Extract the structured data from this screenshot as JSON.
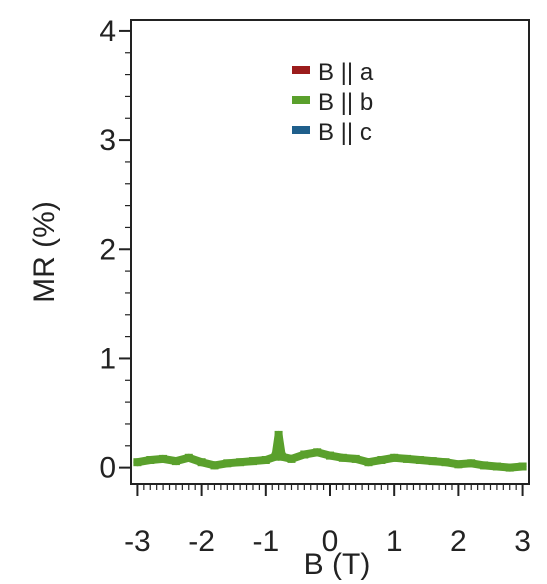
{
  "chart_data": {
    "type": "line",
    "xlabel": "B (T)",
    "ylabel": "MR (%)",
    "xlim": [
      -3.1,
      3.1
    ],
    "ylim": [
      -0.15,
      4.1
    ],
    "x_ticks": [
      -3,
      -2,
      -1,
      0,
      1,
      2,
      3
    ],
    "x_tick_labels": [
      "-3",
      "-2",
      "-1",
      "0",
      "1",
      "2",
      "3"
    ],
    "y_ticks": [
      0,
      1,
      2,
      3,
      4
    ],
    "y_tick_labels": [
      "0",
      "1",
      "2",
      "3",
      "4"
    ],
    "x_minor_step": 0.1,
    "y_minor_step": 0.2,
    "grid": false,
    "legend_position": "top-right",
    "series": [
      {
        "name": "B || a",
        "color": "#9b1c1c",
        "x": [],
        "y": []
      },
      {
        "name": "B || b",
        "color": "#5aa02c",
        "x": [
          -3.0,
          -2.8,
          -2.6,
          -2.4,
          -2.2,
          -2.0,
          -1.8,
          -1.6,
          -1.4,
          -1.2,
          -1.0,
          -0.85,
          -0.8,
          -0.75,
          -0.6,
          -0.4,
          -0.2,
          0.0,
          0.2,
          0.4,
          0.6,
          0.8,
          1.0,
          1.2,
          1.4,
          1.6,
          1.8,
          2.0,
          2.2,
          2.4,
          2.6,
          2.8,
          3.0
        ],
        "y": [
          0.05,
          0.07,
          0.08,
          0.06,
          0.09,
          0.05,
          0.02,
          0.04,
          0.05,
          0.06,
          0.07,
          0.1,
          0.3,
          0.1,
          0.08,
          0.12,
          0.14,
          0.11,
          0.09,
          0.08,
          0.05,
          0.07,
          0.09,
          0.08,
          0.07,
          0.06,
          0.05,
          0.03,
          0.04,
          0.02,
          0.01,
          0.0,
          0.01
        ]
      },
      {
        "name": "B || c",
        "color": "#1f5f8b",
        "x": [],
        "y": []
      }
    ]
  }
}
